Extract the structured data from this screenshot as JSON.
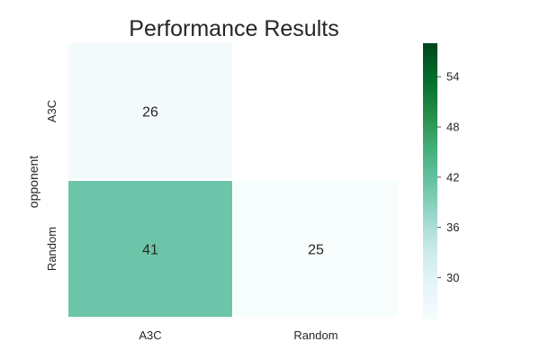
{
  "chart_data": {
    "type": "heatmap",
    "title": "Performance Results",
    "xlabel": "",
    "ylabel": "opponent",
    "x_categories": [
      "A3C",
      "Random"
    ],
    "y_categories": [
      "A3C",
      "Random"
    ],
    "values": [
      [
        26,
        null
      ],
      [
        41,
        25
      ]
    ],
    "colorbar": {
      "min": 25,
      "max": 58,
      "ticks": [
        30,
        36,
        42,
        48,
        54
      ],
      "colors": [
        "#f7fcfd",
        "#e5f5f9",
        "#ccece6",
        "#99d8c9",
        "#66c2a4",
        "#41ae76",
        "#238b45",
        "#006d2c",
        "#00441b"
      ]
    },
    "grid": false
  }
}
